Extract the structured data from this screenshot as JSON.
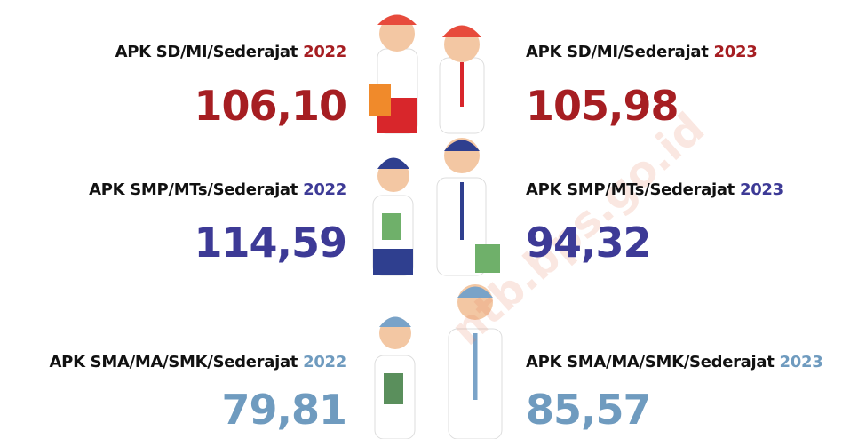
{
  "watermark": "ntb.bps.go.id",
  "rows": [
    {
      "left": {
        "label": "APK SD/MI/Sederajat",
        "year": "2022",
        "value": "106,10"
      },
      "right": {
        "label": "APK SD/MI/Sederajat",
        "year": "2023",
        "value": "105,98"
      }
    },
    {
      "left": {
        "label": "APK SMP/MTs/Sederajat",
        "year": "2022",
        "value": "114,59"
      },
      "right": {
        "label": "APK SMP/MTs/Sederajat",
        "year": "2023",
        "value": "94,32"
      }
    },
    {
      "left": {
        "label": "APK SMA/MA/SMK/Sederajat",
        "year": "2022",
        "value": "79,81"
      },
      "right": {
        "label": "APK SMA/MA/SMK/Sederajat",
        "year": "2023",
        "value": "85,57"
      }
    }
  ]
}
